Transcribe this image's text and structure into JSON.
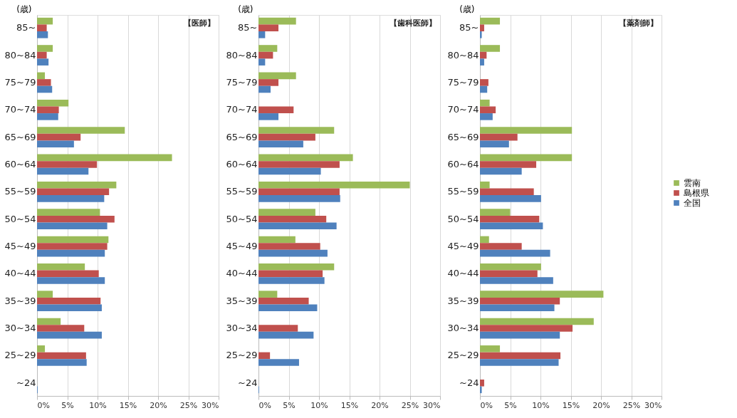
{
  "chart_data": [
    {
      "type": "bar",
      "orientation": "horizontal",
      "title": "【医師】",
      "ylabel": "(歳)",
      "categories": [
        "85~",
        "80~84",
        "75~79",
        "70~74",
        "65~69",
        "60~64",
        "55~59",
        "50~54",
        "45~49",
        "40~44",
        "35~39",
        "30~34",
        "25~29",
        "~24"
      ],
      "series": [
        {
          "color": "#9bbb59",
          "values": [
            2.6,
            2.6,
            1.3,
            5.2,
            14.5,
            22.3,
            13.1,
            10.4,
            11.8,
            7.9,
            2.6,
            3.9,
            1.3,
            0
          ]
        },
        {
          "color": "#c0504d",
          "values": [
            1.6,
            1.6,
            2.3,
            3.6,
            7.2,
            9.9,
            11.9,
            12.8,
            11.6,
            10.2,
            10.5,
            7.8,
            8.1,
            0
          ]
        },
        {
          "color": "#4f81bd",
          "values": [
            1.8,
            1.9,
            2.5,
            3.5,
            6.1,
            8.5,
            11.1,
            11.6,
            11.2,
            11.2,
            10.7,
            10.7,
            8.2,
            0.1
          ]
        }
      ],
      "xlim": [
        0,
        30
      ],
      "xticks": [
        {
          "value": 0,
          "label": "0%"
        },
        {
          "value": 5,
          "label": "5%"
        },
        {
          "value": 10,
          "label": "10%"
        },
        {
          "value": 15,
          "label": "15%"
        },
        {
          "value": 20,
          "label": "20%"
        },
        {
          "value": 25,
          "label": "25%"
        },
        {
          "value": 30,
          "label": "30%"
        }
      ],
      "grid": "x",
      "legend": false
    },
    {
      "type": "bar",
      "orientation": "horizontal",
      "title": "【歯科医師】",
      "ylabel": "(歳)",
      "categories": [
        "85~",
        "80~84",
        "75~79",
        "70~74",
        "65~69",
        "60~64",
        "55~59",
        "50~54",
        "45~49",
        "40~44",
        "35~39",
        "30~34",
        "25~29",
        "~24"
      ],
      "series": [
        {
          "color": "#9bbb59",
          "values": [
            6.2,
            3.1,
            6.2,
            0,
            12.5,
            15.6,
            25.0,
            9.4,
            6.1,
            12.5,
            3.1,
            0,
            0,
            0
          ]
        },
        {
          "color": "#c0504d",
          "values": [
            3.3,
            2.4,
            3.3,
            5.8,
            9.4,
            13.4,
            13.4,
            11.2,
            10.2,
            10.6,
            8.3,
            6.5,
            1.9,
            0
          ]
        },
        {
          "color": "#4f81bd",
          "values": [
            1.1,
            1.1,
            2.0,
            3.3,
            7.4,
            10.3,
            13.5,
            12.9,
            11.4,
            10.9,
            9.7,
            9.1,
            6.7,
            0.1
          ]
        }
      ],
      "xlim": [
        0,
        30
      ],
      "xticks": [
        {
          "value": 0,
          "label": "0%"
        },
        {
          "value": 5,
          "label": "5%"
        },
        {
          "value": 10,
          "label": "10%"
        },
        {
          "value": 15,
          "label": "15%"
        },
        {
          "value": 20,
          "label": "20%"
        },
        {
          "value": 25,
          "label": "25%"
        },
        {
          "value": 30,
          "label": "30%"
        }
      ],
      "grid": "x",
      "legend": false
    },
    {
      "type": "bar",
      "orientation": "horizontal",
      "title": "【薬剤師】",
      "ylabel": "(歳)",
      "categories": [
        "85~",
        "80~84",
        "75~79",
        "70~74",
        "65~69",
        "60~64",
        "55~59",
        "50~54",
        "45~49",
        "40~44",
        "35~39",
        "30~34",
        "25~29",
        "~24"
      ],
      "series": [
        {
          "name": "雲南",
          "color": "#9bbb59",
          "values": [
            3.3,
            3.3,
            0,
            1.6,
            15.2,
            15.2,
            1.6,
            5.0,
            1.5,
            10.1,
            20.4,
            18.8,
            3.3,
            0
          ]
        },
        {
          "name": "島根県",
          "color": "#c0504d",
          "values": [
            0.7,
            1.1,
            1.4,
            2.6,
            6.2,
            9.3,
            8.9,
            9.8,
            6.9,
            9.5,
            13.2,
            15.3,
            13.3,
            0.7
          ]
        },
        {
          "name": "全国",
          "color": "#4f81bd",
          "values": [
            0.3,
            0.7,
            1.2,
            2.1,
            4.8,
            6.9,
            10.1,
            10.4,
            11.6,
            12.1,
            12.3,
            13.2,
            13.0,
            0.3
          ]
        }
      ],
      "xlim": [
        0,
        30
      ],
      "xticks": [
        {
          "value": 0,
          "label": "0%"
        },
        {
          "value": 5,
          "label": "5%"
        },
        {
          "value": 10,
          "label": "10%"
        },
        {
          "value": 15,
          "label": "15%"
        },
        {
          "value": 20,
          "label": "20%"
        },
        {
          "value": 25,
          "label": "25%"
        },
        {
          "value": 30,
          "label": "30%"
        }
      ],
      "grid": "x",
      "legend": "right"
    }
  ]
}
